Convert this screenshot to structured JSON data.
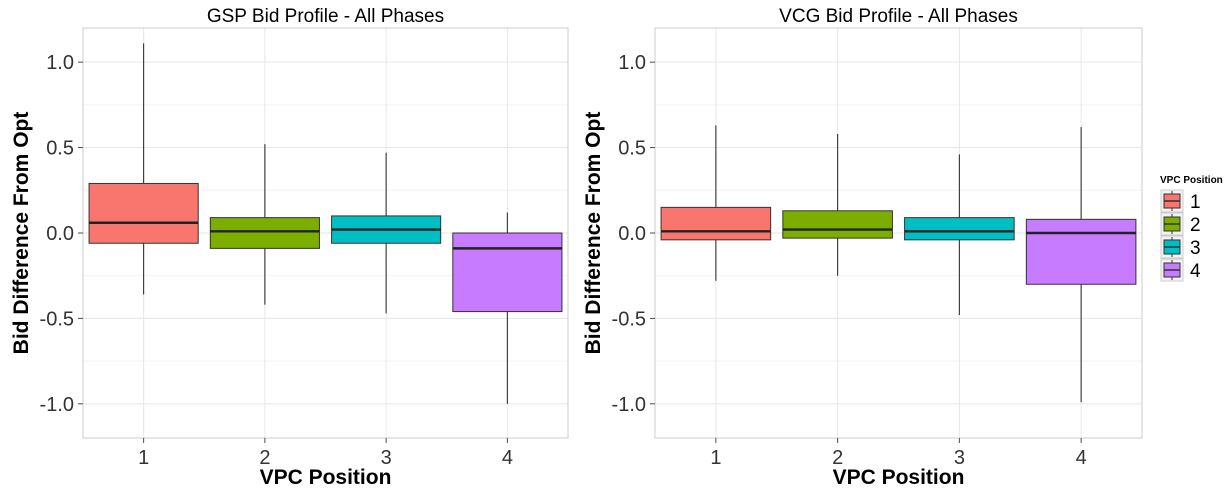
{
  "chart_data": [
    {
      "type": "box",
      "title": "GSP Bid Profile - All Phases",
      "xlabel": "VPC Position",
      "ylabel": "Bid Difference From Opt",
      "ylim": [
        -1.2,
        1.2
      ],
      "y_ticks": [
        "-1.0",
        "-0.5",
        "0.0",
        "0.5",
        "1.0"
      ],
      "categories": [
        "1",
        "2",
        "3",
        "4"
      ],
      "grid": true,
      "boxes": [
        {
          "category": "1",
          "min": -0.36,
          "q1": -0.06,
          "median": 0.06,
          "q3": 0.29,
          "max": 1.11
        },
        {
          "category": "2",
          "min": -0.42,
          "q1": -0.09,
          "median": 0.01,
          "q3": 0.09,
          "max": 0.52
        },
        {
          "category": "3",
          "min": -0.47,
          "q1": -0.06,
          "median": 0.02,
          "q3": 0.1,
          "max": 0.47
        },
        {
          "category": "4",
          "min": -1.0,
          "q1": -0.46,
          "median": -0.09,
          "q3": 0.0,
          "max": 0.12
        }
      ]
    },
    {
      "type": "box",
      "title": "VCG Bid Profile - All Phases",
      "xlabel": "VPC Position",
      "ylabel": "Bid Difference From Opt",
      "ylim": [
        -1.2,
        1.2
      ],
      "y_ticks": [
        "-1.0",
        "-0.5",
        "0.0",
        "0.5",
        "1.0"
      ],
      "categories": [
        "1",
        "2",
        "3",
        "4"
      ],
      "grid": true,
      "boxes": [
        {
          "category": "1",
          "min": -0.28,
          "q1": -0.04,
          "median": 0.01,
          "q3": 0.15,
          "max": 0.63
        },
        {
          "category": "2",
          "min": -0.25,
          "q1": -0.03,
          "median": 0.02,
          "q3": 0.13,
          "max": 0.58
        },
        {
          "category": "3",
          "min": -0.48,
          "q1": -0.04,
          "median": 0.01,
          "q3": 0.09,
          "max": 0.46
        },
        {
          "category": "4",
          "min": -0.99,
          "q1": -0.3,
          "median": 0.0,
          "q3": 0.08,
          "max": 0.62
        }
      ]
    }
  ],
  "legend": {
    "title": "VPC Position",
    "placement": "right",
    "items": [
      {
        "label": "1",
        "color": "#F8766D"
      },
      {
        "label": "2",
        "color": "#7CAE00"
      },
      {
        "label": "3",
        "color": "#00BFC4"
      },
      {
        "label": "4",
        "color": "#C77CFF"
      }
    ]
  }
}
